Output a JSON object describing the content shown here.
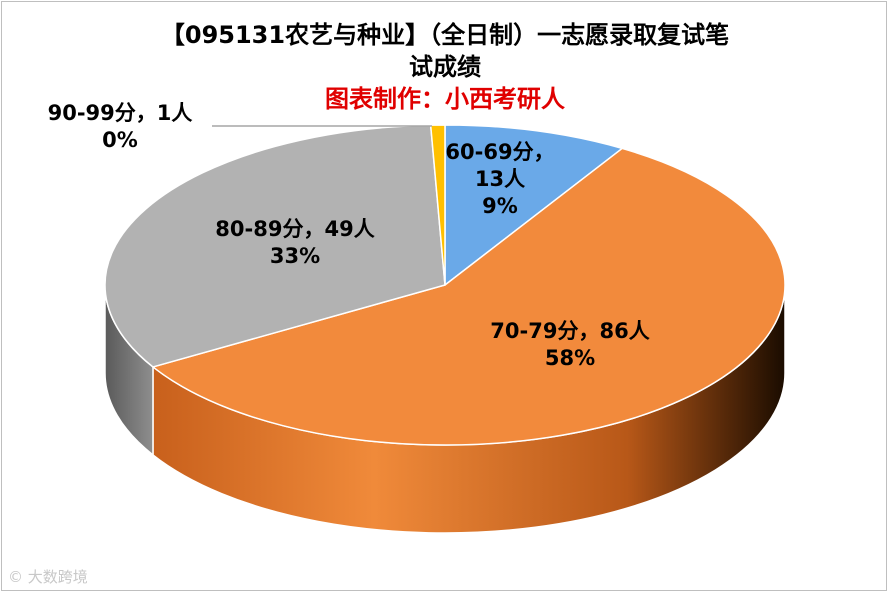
{
  "chart_data": {
    "type": "pie",
    "title_line1": "【095131农艺与种业】（全日制）一志愿录取复试笔",
    "title_line2": "试成绩",
    "subtitle": "图表制作：小西考研人",
    "slices": [
      {
        "range": "60-69分",
        "count": "13人",
        "value": 13,
        "percent": "9%",
        "color": "#6aa9e8"
      },
      {
        "range": "70-79分",
        "count": "86人",
        "value": 86,
        "percent": "58%",
        "color": "#f28a3c"
      },
      {
        "range": "80-89分",
        "count": "49人",
        "value": 49,
        "percent": "33%",
        "color": "#b2b2b2"
      },
      {
        "range": "90-99分",
        "count": "1人",
        "value": 1,
        "percent": "0%",
        "color": "#ffc000"
      }
    ],
    "sep": "，"
  },
  "watermark": "大数跨境"
}
